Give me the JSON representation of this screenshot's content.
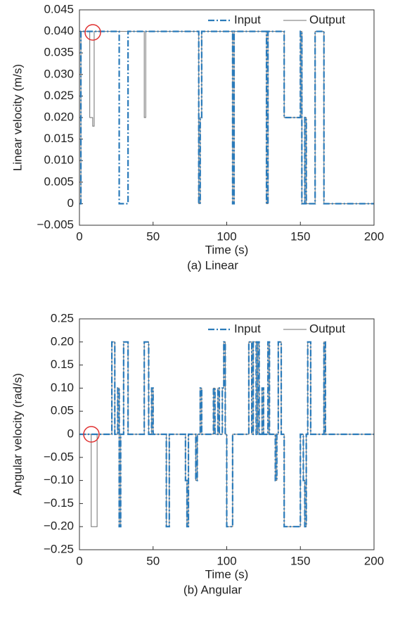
{
  "chart_data": [
    {
      "type": "line",
      "title": "(a) Linear",
      "xlabel": "Time (s)",
      "ylabel": "Linear velocity (m/s)",
      "xlim": [
        0,
        200
      ],
      "xticks": [
        0,
        50,
        100,
        150,
        200
      ],
      "ylim": [
        -0.005,
        0.045
      ],
      "yticks": [
        {
          "value": -0.005,
          "label": "−0.005"
        },
        0,
        0.005,
        {
          "value": 0.01,
          "label": "0.010"
        },
        0.015,
        {
          "value": 0.02,
          "label": "0.020"
        },
        0.025,
        {
          "value": 0.03,
          "label": "0.030"
        },
        0.035,
        {
          "value": 0.04,
          "label": "0.040"
        },
        0.045
      ],
      "legend": "upper right",
      "series": [
        {
          "name": "Input",
          "color": "#2b7bba",
          "linestyle": "dashdot",
          "x": [
            0,
            1,
            1,
            27,
            27,
            33,
            33,
            81,
            81,
            82,
            82,
            83,
            83,
            104,
            104,
            105,
            105,
            127,
            127,
            128,
            128,
            139,
            139,
            150,
            150,
            151,
            151,
            153,
            153,
            154,
            154,
            160,
            160,
            166,
            166,
            200
          ],
          "values": [
            0,
            0,
            0.04,
            0.04,
            0,
            0,
            0.04,
            0.04,
            0,
            0,
            0.02,
            0.02,
            0.04,
            0.04,
            0,
            0,
            0.04,
            0.04,
            0,
            0,
            0.04,
            0.04,
            0.02,
            0.02,
            0.04,
            0.04,
            0,
            0,
            0.02,
            0.02,
            0,
            0,
            0.04,
            0.04,
            0,
            0
          ]
        },
        {
          "name": "Output",
          "color": "#707070",
          "linestyle": "solid",
          "x": [
            0,
            1,
            1,
            7,
            7,
            9,
            9,
            10,
            10,
            44,
            44,
            45,
            45,
            81,
            81,
            82,
            82,
            83,
            83,
            104,
            104,
            105,
            105,
            127,
            127,
            128,
            128,
            139,
            139,
            150,
            150,
            151,
            151,
            153,
            153,
            154,
            154,
            160,
            160,
            166,
            166,
            200
          ],
          "values": [
            0,
            0,
            0.04,
            0.04,
            0.02,
            0.02,
            0.018,
            0.018,
            0.04,
            0.04,
            0.02,
            0.02,
            0.04,
            0.04,
            0,
            0,
            0.02,
            0.02,
            0.04,
            0.04,
            0,
            0,
            0.04,
            0.04,
            0,
            0,
            0.04,
            0.04,
            0.02,
            0.02,
            0.04,
            0.04,
            0,
            0,
            0.02,
            0.02,
            0,
            0,
            0.04,
            0.04,
            0,
            0
          ]
        }
      ]
    },
    {
      "type": "line",
      "title": "(b) Angular",
      "xlabel": "Time (s)",
      "ylabel": "Angular velocity (rad/s)",
      "xlim": [
        0,
        200
      ],
      "xticks": [
        0,
        50,
        100,
        150,
        200
      ],
      "ylim": [
        -0.25,
        0.25
      ],
      "yticks": [
        {
          "value": -0.25,
          "label": "−0.25"
        },
        {
          "value": -0.2,
          "label": "−0.20"
        },
        {
          "value": -0.15,
          "label": "−0.15"
        },
        {
          "value": -0.1,
          "label": "−0.10"
        },
        {
          "value": -0.05,
          "label": "−0.05"
        },
        0,
        0.05,
        {
          "value": 0.1,
          "label": "0.10"
        },
        0.15,
        {
          "value": 0.2,
          "label": "0.20"
        },
        0.25
      ],
      "legend": "upper right",
      "series": [
        {
          "name": "Input",
          "color": "#2b7bba",
          "linestyle": "dashdot",
          "x": [
            0,
            22,
            22,
            24,
            24,
            26,
            26,
            27,
            27,
            28,
            28,
            30,
            30,
            33,
            33,
            44,
            44,
            47,
            47,
            49,
            49,
            50,
            50,
            59,
            59,
            61,
            61,
            72,
            72,
            73,
            73,
            74,
            74,
            79,
            79,
            80,
            80,
            82,
            82,
            83,
            83,
            91,
            91,
            92,
            92,
            94,
            94,
            95,
            95,
            97,
            97,
            98,
            98,
            99,
            99,
            100,
            100,
            104,
            104,
            115,
            115,
            117,
            117,
            118,
            118,
            120,
            120,
            121,
            121,
            122,
            122,
            124,
            124,
            125,
            125,
            128,
            128,
            129,
            129,
            133,
            133,
            134,
            134,
            135,
            135,
            137,
            137,
            139,
            139,
            150,
            150,
            152,
            152,
            153,
            153,
            154,
            154,
            155,
            155,
            157,
            157,
            166,
            166,
            167,
            167,
            200
          ],
          "values": [
            0,
            0,
            0.2,
            0.2,
            0,
            0,
            0.1,
            0.1,
            -0.2,
            -0.2,
            0,
            0,
            0.2,
            0.2,
            0,
            0,
            0.2,
            0.2,
            0,
            0,
            0.1,
            0.1,
            0,
            0,
            -0.2,
            -0.2,
            0,
            0,
            -0.1,
            -0.1,
            -0.2,
            -0.2,
            0,
            0,
            -0.1,
            -0.1,
            0,
            0,
            0.1,
            0.1,
            0,
            0,
            0.1,
            0.1,
            0,
            0,
            0.1,
            0.1,
            0,
            0,
            0.1,
            0.1,
            0.2,
            0.2,
            0,
            0,
            -0.2,
            -0.2,
            0,
            0,
            0.2,
            0.2,
            0,
            0,
            0.2,
            0.2,
            0,
            0,
            0.2,
            0.2,
            0,
            0,
            0.1,
            0.1,
            0,
            0,
            0.2,
            0.2,
            0,
            0,
            -0.1,
            -0.1,
            0,
            0,
            0.2,
            0.2,
            0,
            0,
            -0.2,
            -0.2,
            0,
            0,
            -0.1,
            -0.1,
            -0.2,
            -0.2,
            0,
            0,
            0.2,
            0.2,
            0,
            0,
            0.2,
            0.2,
            0,
            0
          ]
        },
        {
          "name": "Output",
          "color": "#707070",
          "linestyle": "solid",
          "x": [
            0,
            8,
            8,
            12,
            12,
            22,
            22,
            24,
            24,
            26,
            26,
            27,
            27,
            28,
            28,
            30,
            30,
            33,
            33,
            44,
            44,
            47,
            47,
            49,
            49,
            50,
            50,
            59,
            59,
            61,
            61,
            72,
            72,
            73,
            73,
            74,
            74,
            79,
            79,
            80,
            80,
            82,
            82,
            83,
            83,
            91,
            91,
            92,
            92,
            94,
            94,
            95,
            95,
            97,
            97,
            98,
            98,
            99,
            99,
            100,
            100,
            104,
            104,
            115,
            115,
            117,
            117,
            118,
            118,
            120,
            120,
            121,
            121,
            122,
            122,
            124,
            124,
            125,
            125,
            128,
            128,
            129,
            129,
            133,
            133,
            134,
            134,
            135,
            135,
            137,
            137,
            139,
            139,
            150,
            150,
            152,
            152,
            153,
            153,
            154,
            154,
            155,
            155,
            157,
            157,
            166,
            166,
            167,
            167,
            200
          ],
          "values": [
            0,
            0,
            -0.2,
            -0.2,
            0,
            0,
            0.2,
            0.2,
            0,
            0,
            0.1,
            0.1,
            -0.2,
            -0.2,
            0,
            0,
            0.2,
            0.2,
            0,
            0,
            0.2,
            0.2,
            0,
            0,
            0.1,
            0.1,
            0,
            0,
            -0.2,
            -0.2,
            0,
            0,
            -0.1,
            -0.1,
            -0.2,
            -0.2,
            0,
            0,
            -0.1,
            -0.1,
            0,
            0,
            0.1,
            0.1,
            0,
            0,
            0.1,
            0.1,
            0,
            0,
            0.1,
            0.1,
            0,
            0,
            0.1,
            0.1,
            0.2,
            0.2,
            0,
            0,
            -0.2,
            -0.2,
            0,
            0,
            0.2,
            0.2,
            0,
            0,
            0.2,
            0.2,
            0,
            0,
            0.2,
            0.2,
            0,
            0,
            0.1,
            0.1,
            0,
            0,
            0.2,
            0.2,
            0,
            0,
            -0.1,
            -0.1,
            0,
            0,
            0.2,
            0.2,
            0,
            0,
            -0.2,
            -0.2,
            0,
            0,
            -0.1,
            -0.1,
            -0.2,
            -0.2,
            0,
            0,
            0.2,
            0.2,
            0,
            0,
            0.2,
            0.2,
            0,
            0
          ]
        }
      ]
    }
  ]
}
